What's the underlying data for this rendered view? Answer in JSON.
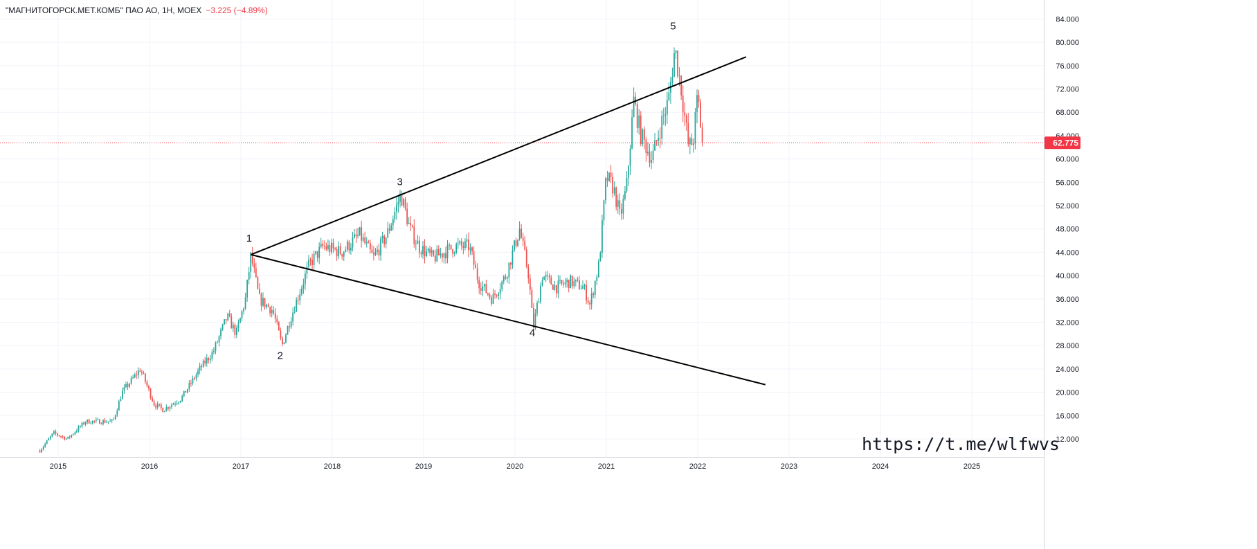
{
  "header": {
    "symbol": "\"МАГНИТОГОРСК.МЕТ.КОМБ\" ПАО АО, 1Н, MOEX",
    "change": "−3.225 (−4.89%)"
  },
  "watermark": "https://t.me/wlfwvs",
  "colors": {
    "up": "#26a69a",
    "down": "#ef5350",
    "last_price": "#f23645",
    "grid": "#f0f3fa",
    "trendline": "#000000"
  },
  "chart_data": {
    "type": "candlestick",
    "title": "",
    "grid": true,
    "y_axis": {
      "position": "right",
      "ylim": [
        9,
        87
      ],
      "ticks": [
        "12.000",
        "16.000",
        "20.000",
        "24.000",
        "28.000",
        "32.000",
        "36.000",
        "40.000",
        "44.000",
        "48.000",
        "52.000",
        "56.000",
        "60.000",
        "64.000",
        "68.000",
        "72.000",
        "76.000",
        "80.000",
        "84.000"
      ]
    },
    "x_axis": {
      "ticks": [
        "2015",
        "2016",
        "2017",
        "2018",
        "2019",
        "2020",
        "2021",
        "2022",
        "2023",
        "2024",
        "2025"
      ],
      "xlim": [
        2014.37,
        2025.8
      ]
    },
    "last_price": "62.775",
    "price_path": [
      [
        2014.8,
        10
      ],
      [
        2014.95,
        13
      ],
      [
        2015.1,
        12
      ],
      [
        2015.3,
        15
      ],
      [
        2015.6,
        15
      ],
      [
        2015.7,
        20
      ],
      [
        2015.9,
        24
      ],
      [
        2016.05,
        18
      ],
      [
        2016.15,
        17
      ],
      [
        2016.35,
        19
      ],
      [
        2016.55,
        24
      ],
      [
        2016.7,
        27
      ],
      [
        2016.85,
        33
      ],
      [
        2016.95,
        30
      ],
      [
        2017.05,
        36
      ],
      [
        2017.11,
        43.5
      ],
      [
        2017.2,
        36
      ],
      [
        2017.35,
        34
      ],
      [
        2017.45,
        28
      ],
      [
        2017.55,
        33
      ],
      [
        2017.75,
        42
      ],
      [
        2017.9,
        45
      ],
      [
        2018.1,
        44
      ],
      [
        2018.3,
        47
      ],
      [
        2018.45,
        43
      ],
      [
        2018.6,
        47
      ],
      [
        2018.75,
        54
      ],
      [
        2018.85,
        48
      ],
      [
        2018.95,
        45
      ],
      [
        2019.1,
        43
      ],
      [
        2019.35,
        45
      ],
      [
        2019.5,
        45
      ],
      [
        2019.6,
        39
      ],
      [
        2019.75,
        36
      ],
      [
        2019.9,
        40
      ],
      [
        2020.05,
        48
      ],
      [
        2020.15,
        40
      ],
      [
        2020.2,
        31
      ],
      [
        2020.3,
        40
      ],
      [
        2020.45,
        38
      ],
      [
        2020.6,
        39
      ],
      [
        2020.75,
        38
      ],
      [
        2020.82,
        35
      ],
      [
        2020.92,
        42
      ],
      [
        2021.0,
        57
      ],
      [
        2021.08,
        55
      ],
      [
        2021.15,
        50
      ],
      [
        2021.22,
        55
      ],
      [
        2021.3,
        70
      ],
      [
        2021.38,
        64
      ],
      [
        2021.5,
        60
      ],
      [
        2021.6,
        66
      ],
      [
        2021.68,
        70
      ],
      [
        2021.75,
        79
      ],
      [
        2021.82,
        72
      ],
      [
        2021.9,
        62
      ],
      [
        2021.95,
        63
      ],
      [
        2022.0,
        71
      ],
      [
        2022.05,
        62.775
      ]
    ],
    "trendlines": [
      {
        "from": [
          2017.11,
          43.6
        ],
        "to": [
          2022.53,
          77.5
        ]
      },
      {
        "from": [
          2017.11,
          43.6
        ],
        "to": [
          2022.74,
          21.3
        ]
      }
    ],
    "annotations": [
      {
        "text": "1",
        "date": 2017.09,
        "price": 45.8
      },
      {
        "text": "2",
        "date": 2017.43,
        "price": 25.7
      },
      {
        "text": "3",
        "date": 2018.74,
        "price": 55.5
      },
      {
        "text": "4",
        "date": 2020.19,
        "price": 29.6
      },
      {
        "text": "5",
        "date": 2021.73,
        "price": 82.2
      }
    ]
  }
}
